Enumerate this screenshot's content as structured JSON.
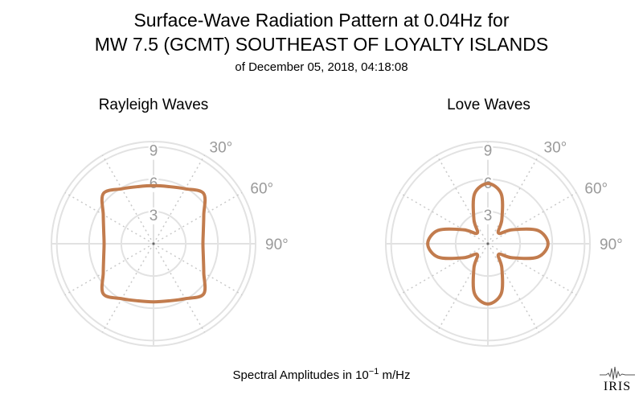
{
  "title_line1": "Surface-Wave Radiation Pattern at 0.04Hz for",
  "title_line2": "MW 7.5 (GCMT) SOUTHEAST OF LOYALTY ISLANDS",
  "subtitle": "of December 05, 2018, 04:18:08",
  "footer": {
    "prefix": "Spectral Amplitudes in 10",
    "exponent": "−1",
    "unit": "m/Hz"
  },
  "logo_text": "IRIS",
  "colors": {
    "pattern": "#c27c4e",
    "grid": "#e2e2e2",
    "grid_dotted": "#c8c8c8",
    "tick_text": "#9a9a9a"
  },
  "chart_data": [
    {
      "type": "polar",
      "title": "Rayleigh Waves",
      "r_ticks": [
        "3",
        "6",
        "9"
      ],
      "angle_ticks": [
        "30°",
        "60°",
        "90°"
      ],
      "rmax": 9.5,
      "series": [
        {
          "theta_deg": [
            0,
            15,
            30,
            45,
            60,
            75,
            90,
            105,
            120,
            135,
            150,
            165,
            180,
            195,
            210,
            225,
            240,
            255,
            270,
            285,
            300,
            315,
            330,
            345
          ],
          "r": [
            5.4,
            5.5,
            5.9,
            6.6,
            5.4,
            4.8,
            4.6,
            4.8,
            5.4,
            6.6,
            5.9,
            5.5,
            5.4,
            5.5,
            5.9,
            6.6,
            5.4,
            4.8,
            4.6,
            4.8,
            5.4,
            6.6,
            5.9,
            5.5
          ]
        }
      ]
    },
    {
      "type": "polar",
      "title": "Love Waves",
      "r_ticks": [
        "3",
        "6",
        "9"
      ],
      "angle_ticks": [
        "30°",
        "60°",
        "90°"
      ],
      "rmax": 9.5,
      "series": [
        {
          "theta_deg": [
            0,
            15,
            30,
            45,
            60,
            75,
            90,
            105,
            120,
            135,
            150,
            165,
            180,
            195,
            210,
            225,
            240,
            255,
            270,
            285,
            300,
            315,
            330,
            345
          ],
          "r": [
            5.6,
            4.8,
            2.6,
            1.4,
            2.6,
            4.8,
            5.6,
            4.8,
            2.6,
            1.4,
            2.6,
            4.8,
            5.6,
            4.8,
            2.6,
            1.4,
            2.6,
            4.8,
            5.6,
            4.8,
            2.6,
            1.4,
            2.6,
            4.8
          ]
        }
      ]
    }
  ]
}
